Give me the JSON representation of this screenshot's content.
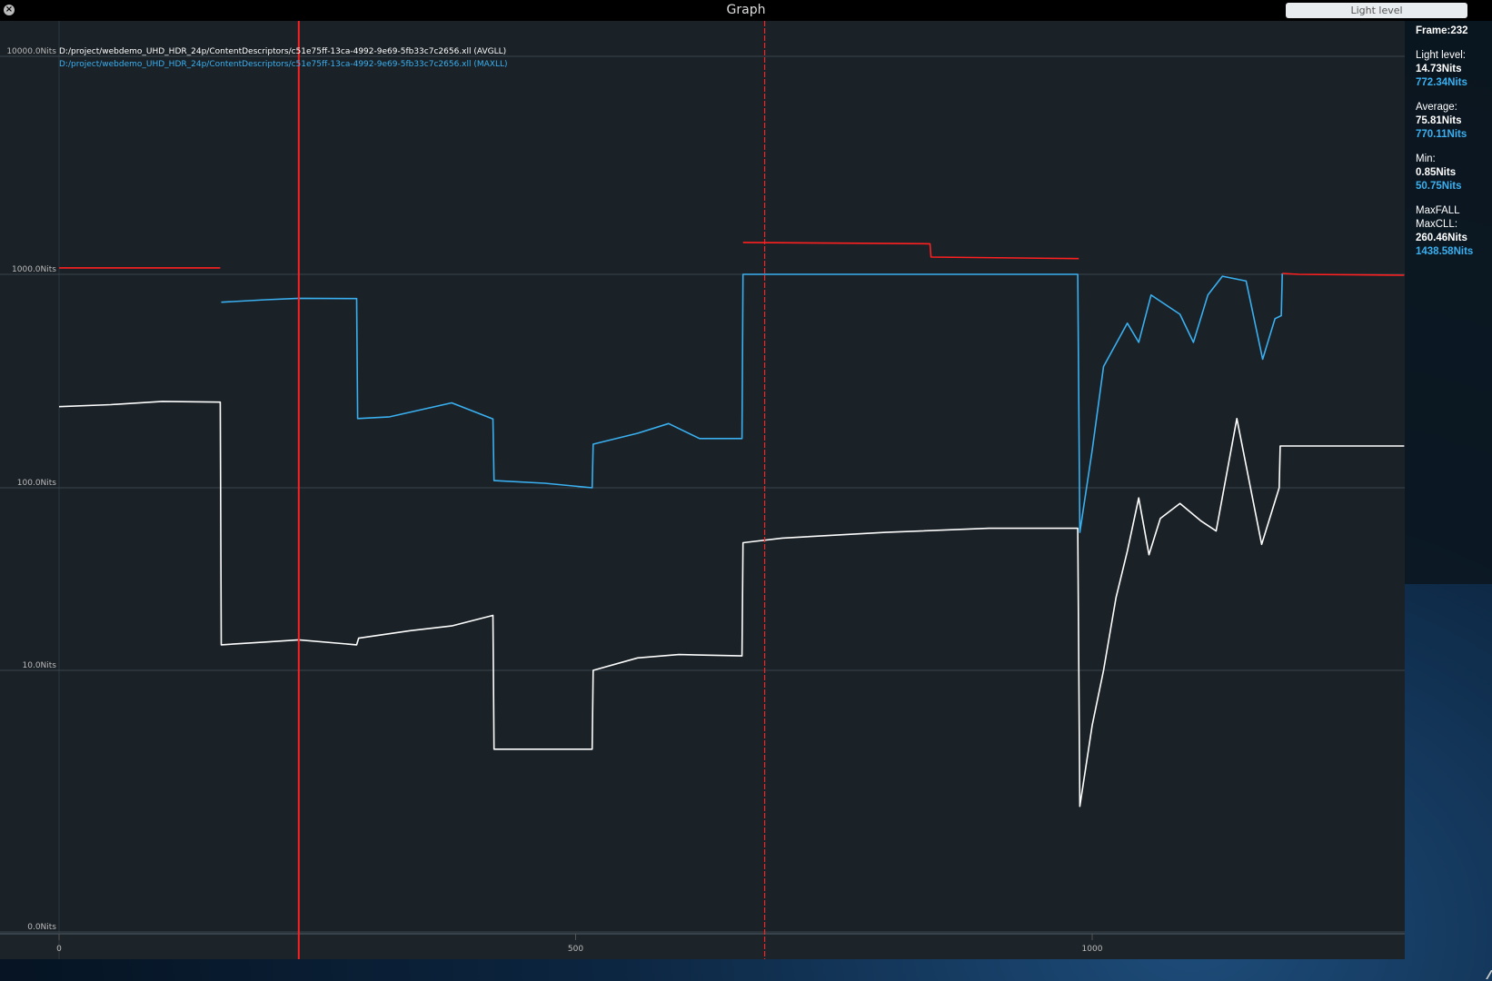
{
  "window": {
    "title": "Graph",
    "mode_button": "Light level"
  },
  "legend": [
    {
      "label": "D:/project/webdemo_UHD_HDR_24p/ContentDescriptors/c51e75ff-13ca-4992-9e69-5fb33c7c2656.xll (AVGLL)",
      "color": "#ffffff"
    },
    {
      "label": "D:/project/webdemo_UHD_HDR_24p/ContentDescriptors/c51e75ff-13ca-4992-9e69-5fb33c7c2656.xll (MAXLL)",
      "color": "#3ab0f0"
    }
  ],
  "sidebar": {
    "frame": "Frame:232",
    "light_level_label": "Light level:",
    "light_level_avg": "14.73Nits",
    "light_level_max": "772.34Nits",
    "average_label": "Average:",
    "average_avg": "75.81Nits",
    "average_max": "770.11Nits",
    "min_label": "Min:",
    "min_avg": "0.85Nits",
    "min_max": "50.75Nits",
    "maxfall_label": "MaxFALL",
    "maxcll_label": "MaxCLL:",
    "maxfall": "260.46Nits",
    "maxcll": "1438.58Nits"
  },
  "chart_data": {
    "type": "line",
    "title": "",
    "xlabel": "",
    "ylabel": "",
    "y_scale": "log",
    "xlim": [
      0,
      1302
    ],
    "x_ticks": [
      {
        "value": 0,
        "label": "0"
      },
      {
        "value": 500,
        "label": "500"
      },
      {
        "value": 1000,
        "label": "1000"
      }
    ],
    "y_ticks": [
      {
        "value": 10000,
        "label": "10000.0Nits"
      },
      {
        "value": 1000,
        "label": "1000.0Nits"
      },
      {
        "value": 100,
        "label": "100.0Nits"
      },
      {
        "value": 10,
        "label": "10.0Nits"
      },
      {
        "value": 0,
        "label": "0.0Nits"
      }
    ],
    "grid": true,
    "legend_position": "top-left",
    "markers": [
      {
        "frame": 232,
        "color": "#ff2020",
        "style": "solid"
      },
      {
        "frame": 683,
        "color": "#ff2020",
        "style": "dashed"
      }
    ],
    "series": [
      {
        "name": "AVGLL",
        "color": "#ffffff",
        "points": [
          [
            0,
            240
          ],
          [
            50,
            245
          ],
          [
            100,
            254
          ],
          [
            156,
            252
          ],
          [
            157,
            13.8
          ],
          [
            200,
            14.3
          ],
          [
            232,
            14.7
          ],
          [
            288,
            13.8
          ],
          [
            290,
            15
          ],
          [
            340,
            16.5
          ],
          [
            380,
            17.5
          ],
          [
            420,
            20
          ],
          [
            421,
            3.7
          ],
          [
            516,
            3.7
          ],
          [
            517,
            10
          ],
          [
            560,
            11.7
          ],
          [
            600,
            12.2
          ],
          [
            661,
            12
          ],
          [
            662,
            50
          ],
          [
            700,
            53
          ],
          [
            800,
            57
          ],
          [
            900,
            60
          ],
          [
            986,
            60
          ],
          [
            988,
            1.8
          ],
          [
            1000,
            5
          ],
          [
            1011,
            10
          ],
          [
            1023,
            25
          ],
          [
            1034,
            45
          ],
          [
            1045,
            88
          ],
          [
            1055,
            43
          ],
          [
            1066,
            68
          ],
          [
            1085,
            82
          ],
          [
            1105,
            66
          ],
          [
            1120,
            58
          ],
          [
            1140,
            211
          ],
          [
            1164,
            49
          ],
          [
            1181,
            100
          ],
          [
            1182,
            157
          ],
          [
            1302,
            157
          ]
        ]
      },
      {
        "name": "MAXLL",
        "color": "#3ab0f0",
        "points": [
          [
            157,
            740
          ],
          [
            200,
            760
          ],
          [
            232,
            772
          ],
          [
            288,
            770
          ],
          [
            289,
            211
          ],
          [
            320,
            215
          ],
          [
            380,
            250
          ],
          [
            420,
            210
          ],
          [
            421,
            108
          ],
          [
            470,
            105
          ],
          [
            516,
            100
          ],
          [
            517,
            160
          ],
          [
            560,
            180
          ],
          [
            590,
            200
          ],
          [
            620,
            170
          ],
          [
            661,
            170
          ],
          [
            662,
            1000
          ],
          [
            986,
            1000
          ],
          [
            988,
            57
          ],
          [
            1000,
            150
          ],
          [
            1011,
            370
          ],
          [
            1034,
            590
          ],
          [
            1045,
            480
          ],
          [
            1057,
            800
          ],
          [
            1085,
            650
          ],
          [
            1098,
            480
          ],
          [
            1112,
            800
          ],
          [
            1126,
            980
          ],
          [
            1149,
            930
          ],
          [
            1165,
            400
          ],
          [
            1177,
            620
          ],
          [
            1183,
            640
          ],
          [
            1184,
            1010
          ]
        ]
      },
      {
        "name": "",
        "color": "#ff2020",
        "points": [
          [
            0,
            1070
          ],
          [
            156,
            1070
          ],
          null,
          [
            662,
            1400
          ],
          [
            760,
            1390
          ],
          [
            843,
            1380
          ],
          [
            844,
            1200
          ],
          [
            987,
            1180
          ],
          null,
          [
            1184,
            1010
          ],
          [
            1200,
            1000
          ],
          [
            1302,
            990
          ]
        ]
      }
    ]
  }
}
